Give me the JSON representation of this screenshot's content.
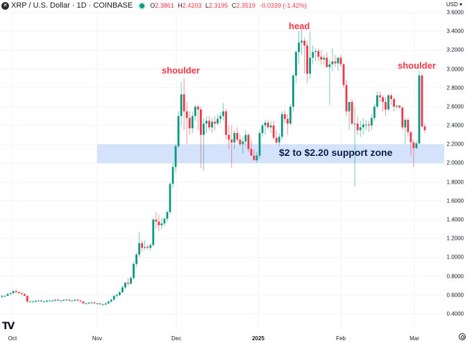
{
  "header": {
    "symbol_icon": "x-logo-icon",
    "title": "XRP / U.S. Dollar · 1D · COINBASE",
    "market_status": "open",
    "ohlc": {
      "o_label": "O",
      "o": "2.3861",
      "h_label": "H",
      "h": "2.4203",
      "l_label": "L",
      "l": "2.3195",
      "c_label": "C",
      "c": "2.3519",
      "change": "-0.0339 (-1.42%)"
    }
  },
  "axis": {
    "currency": "USD ▾",
    "y_labels": [
      "3.6000",
      "3.4000",
      "3.2000",
      "3.0000",
      "2.8000",
      "2.6000",
      "2.4000",
      "2.2000",
      "2.0000",
      "1.8000",
      "1.6000",
      "1.4000",
      "1.2000",
      "1.0000",
      "0.8000",
      "0.6000",
      "0.4000"
    ],
    "x_labels": [
      {
        "label": "Oct",
        "x": 18,
        "bold": false
      },
      {
        "label": "Nov",
        "x": 140,
        "bold": false
      },
      {
        "label": "Dec",
        "x": 254,
        "bold": false
      },
      {
        "label": "2025",
        "x": 372,
        "bold": true
      },
      {
        "label": "Feb",
        "x": 491,
        "bold": false
      },
      {
        "label": "Mar",
        "x": 597,
        "bold": false
      }
    ]
  },
  "annotations": {
    "left_shoulder": "shoulder",
    "head": "head",
    "right_shoulder": "shoulder",
    "support_zone": "$2 to $2.20 support zone"
  },
  "colors": {
    "up": "#089981",
    "down": "#f23645",
    "support_zone_fill": "#d4e2fc",
    "annotation": "#f23645",
    "zone_text": "#0c1e4a",
    "grid": "#f2f3f5"
  },
  "branding": {
    "logo": "tradingview-logo-icon"
  },
  "chart_data": {
    "type": "candlestick",
    "title": "XRP / U.S. Dollar · 1D · COINBASE",
    "xlabel": "",
    "ylabel": "USD",
    "ylim": [
      0.4,
      3.6
    ],
    "y_ticks": [
      0.4,
      0.6,
      0.8,
      1.0,
      1.2,
      1.4,
      1.6,
      1.8,
      2.0,
      2.2,
      2.4,
      2.6,
      2.8,
      3.0,
      3.2,
      3.4,
      3.6
    ],
    "x_ticks": [
      "Oct",
      "Nov",
      "Dec",
      "2025",
      "Feb",
      "Mar"
    ],
    "grid": true,
    "last": {
      "open": 2.3861,
      "high": 2.4203,
      "low": 2.3195,
      "close": 2.3519,
      "change": -0.0339,
      "change_pct": -1.42
    },
    "support_zone": {
      "low": 2.0,
      "high": 2.2,
      "label": "$2 to $2.20 support zone"
    },
    "pattern": "head and shoulders",
    "pattern_points": [
      {
        "label": "shoulder",
        "approx_date": "early Dec 2024",
        "price": 2.9
      },
      {
        "label": "head",
        "approx_date": "mid Jan 2025",
        "price": 3.4
      },
      {
        "label": "shoulder",
        "approx_date": "early Mar 2025",
        "price": 2.95
      }
    ],
    "candles": [
      [
        0.58,
        0.6,
        0.57,
        0.59
      ],
      [
        0.59,
        0.6,
        0.58,
        0.59
      ],
      [
        0.59,
        0.62,
        0.59,
        0.61
      ],
      [
        0.61,
        0.63,
        0.6,
        0.62
      ],
      [
        0.62,
        0.65,
        0.61,
        0.64
      ],
      [
        0.64,
        0.66,
        0.62,
        0.63
      ],
      [
        0.63,
        0.64,
        0.61,
        0.62
      ],
      [
        0.62,
        0.63,
        0.6,
        0.61
      ],
      [
        0.61,
        0.62,
        0.59,
        0.59
      ],
      [
        0.59,
        0.6,
        0.52,
        0.53
      ],
      [
        0.53,
        0.54,
        0.52,
        0.53
      ],
      [
        0.53,
        0.54,
        0.52,
        0.53
      ],
      [
        0.53,
        0.54,
        0.52,
        0.54
      ],
      [
        0.54,
        0.55,
        0.53,
        0.54
      ],
      [
        0.54,
        0.55,
        0.53,
        0.53
      ],
      [
        0.53,
        0.54,
        0.52,
        0.53
      ],
      [
        0.53,
        0.55,
        0.52,
        0.54
      ],
      [
        0.54,
        0.55,
        0.53,
        0.54
      ],
      [
        0.54,
        0.55,
        0.53,
        0.54
      ],
      [
        0.54,
        0.55,
        0.53,
        0.55
      ],
      [
        0.55,
        0.56,
        0.54,
        0.54
      ],
      [
        0.54,
        0.55,
        0.53,
        0.54
      ],
      [
        0.54,
        0.55,
        0.53,
        0.55
      ],
      [
        0.55,
        0.56,
        0.54,
        0.55
      ],
      [
        0.55,
        0.56,
        0.54,
        0.54
      ],
      [
        0.54,
        0.55,
        0.53,
        0.54
      ],
      [
        0.54,
        0.55,
        0.53,
        0.55
      ],
      [
        0.55,
        0.56,
        0.54,
        0.54
      ],
      [
        0.54,
        0.55,
        0.53,
        0.53
      ],
      [
        0.53,
        0.54,
        0.51,
        0.51
      ],
      [
        0.51,
        0.52,
        0.5,
        0.51
      ],
      [
        0.51,
        0.52,
        0.5,
        0.52
      ],
      [
        0.52,
        0.53,
        0.51,
        0.52
      ],
      [
        0.52,
        0.53,
        0.51,
        0.51
      ],
      [
        0.51,
        0.52,
        0.5,
        0.51
      ],
      [
        0.51,
        0.52,
        0.5,
        0.5
      ],
      [
        0.5,
        0.51,
        0.49,
        0.5
      ],
      [
        0.5,
        0.52,
        0.49,
        0.51
      ],
      [
        0.51,
        0.54,
        0.5,
        0.53
      ],
      [
        0.53,
        0.56,
        0.52,
        0.55
      ],
      [
        0.55,
        0.6,
        0.54,
        0.59
      ],
      [
        0.59,
        0.62,
        0.57,
        0.6
      ],
      [
        0.6,
        0.64,
        0.59,
        0.63
      ],
      [
        0.63,
        0.7,
        0.62,
        0.68
      ],
      [
        0.68,
        0.74,
        0.66,
        0.73
      ],
      [
        0.73,
        0.78,
        0.7,
        0.72
      ],
      [
        0.72,
        0.8,
        0.71,
        0.78
      ],
      [
        0.78,
        0.95,
        0.76,
        0.93
      ],
      [
        0.93,
        1.05,
        0.9,
        1.03
      ],
      [
        1.03,
        1.27,
        1.0,
        1.15
      ],
      [
        1.15,
        1.18,
        1.06,
        1.1
      ],
      [
        1.1,
        1.18,
        1.08,
        1.11
      ],
      [
        1.11,
        1.14,
        1.08,
        1.1
      ],
      [
        1.1,
        1.15,
        1.07,
        1.13
      ],
      [
        1.13,
        1.42,
        1.12,
        1.4
      ],
      [
        1.4,
        1.48,
        1.3,
        1.38
      ],
      [
        1.38,
        1.45,
        1.28,
        1.34
      ],
      [
        1.34,
        1.42,
        1.3,
        1.36
      ],
      [
        1.36,
        1.42,
        1.33,
        1.41
      ],
      [
        1.41,
        1.5,
        1.38,
        1.48
      ],
      [
        1.48,
        1.8,
        1.46,
        1.78
      ],
      [
        1.78,
        2.0,
        1.74,
        1.96
      ],
      [
        1.96,
        2.2,
        1.9,
        2.18
      ],
      [
        2.18,
        2.55,
        2.16,
        2.5
      ],
      [
        2.5,
        2.86,
        2.4,
        2.73
      ],
      [
        2.73,
        2.9,
        2.35,
        2.55
      ],
      [
        2.55,
        2.65,
        2.2,
        2.48
      ],
      [
        2.48,
        2.55,
        2.3,
        2.37
      ],
      [
        2.37,
        2.55,
        2.32,
        2.5
      ],
      [
        2.5,
        2.62,
        2.45,
        2.6
      ],
      [
        2.6,
        2.62,
        2.35,
        2.57
      ],
      [
        2.57,
        2.6,
        1.95,
        2.3
      ],
      [
        2.3,
        2.48,
        1.92,
        2.42
      ],
      [
        2.42,
        2.5,
        2.32,
        2.45
      ],
      [
        2.45,
        2.5,
        2.35,
        2.38
      ],
      [
        2.38,
        2.48,
        2.32,
        2.44
      ],
      [
        2.44,
        2.5,
        2.35,
        2.42
      ],
      [
        2.42,
        2.52,
        2.4,
        2.47
      ],
      [
        2.47,
        2.54,
        2.42,
        2.5
      ],
      [
        2.5,
        2.64,
        2.45,
        2.55
      ],
      [
        2.55,
        2.58,
        2.25,
        2.3
      ],
      [
        2.3,
        2.4,
        2.15,
        2.25
      ],
      [
        2.25,
        2.4,
        1.95,
        2.22
      ],
      [
        2.22,
        2.35,
        2.15,
        2.32
      ],
      [
        2.32,
        2.38,
        2.22,
        2.25
      ],
      [
        2.25,
        2.3,
        2.18,
        2.2
      ],
      [
        2.2,
        2.28,
        2.1,
        2.23
      ],
      [
        2.23,
        2.35,
        2.18,
        2.3
      ],
      [
        2.3,
        2.32,
        2.12,
        2.15
      ],
      [
        2.15,
        2.25,
        2.08,
        2.08
      ],
      [
        2.08,
        2.15,
        2.05,
        2.03
      ],
      [
        2.03,
        2.12,
        2.0,
        2.08
      ],
      [
        2.08,
        2.35,
        2.05,
        2.32
      ],
      [
        2.32,
        2.42,
        2.28,
        2.4
      ],
      [
        2.4,
        2.46,
        2.3,
        2.43
      ],
      [
        2.43,
        2.46,
        2.35,
        2.38
      ],
      [
        2.38,
        2.45,
        2.32,
        2.4
      ],
      [
        2.4,
        2.45,
        2.25,
        2.27
      ],
      [
        2.27,
        2.35,
        2.2,
        2.22
      ],
      [
        2.22,
        2.32,
        2.18,
        2.28
      ],
      [
        2.28,
        2.55,
        2.25,
        2.52
      ],
      [
        2.52,
        2.56,
        2.42,
        2.47
      ],
      [
        2.47,
        2.52,
        2.3,
        2.42
      ],
      [
        2.42,
        2.62,
        2.4,
        2.6
      ],
      [
        2.6,
        2.95,
        2.55,
        2.93
      ],
      [
        2.93,
        3.2,
        2.85,
        3.18
      ],
      [
        3.18,
        3.4,
        3.05,
        3.28
      ],
      [
        3.28,
        3.42,
        3.15,
        3.3
      ],
      [
        3.3,
        3.33,
        2.95,
        3.25
      ],
      [
        3.25,
        3.3,
        2.85,
        2.95
      ],
      [
        2.95,
        3.4,
        2.9,
        3.12
      ],
      [
        3.12,
        3.25,
        3.05,
        3.18
      ],
      [
        3.18,
        3.22,
        3.08,
        3.19
      ],
      [
        3.19,
        3.22,
        3.08,
        3.13
      ],
      [
        3.13,
        3.2,
        3.05,
        3.1
      ],
      [
        3.1,
        3.15,
        3.05,
        3.12
      ],
      [
        3.12,
        3.18,
        3.02,
        3.02
      ],
      [
        3.02,
        3.1,
        2.62,
        3.05
      ],
      [
        3.05,
        3.22,
        2.98,
        3.08
      ],
      [
        3.08,
        3.15,
        3.02,
        3.06
      ],
      [
        3.06,
        3.12,
        2.98,
        3.12
      ],
      [
        3.12,
        3.15,
        3.02,
        3.05
      ],
      [
        3.05,
        3.06,
        2.8,
        2.83
      ],
      [
        2.83,
        2.88,
        2.5,
        2.55
      ],
      [
        2.55,
        2.65,
        2.35,
        2.65
      ],
      [
        2.65,
        2.68,
        2.4,
        2.42
      ],
      [
        2.42,
        2.6,
        1.75,
        2.42
      ],
      [
        2.42,
        2.5,
        2.3,
        2.35
      ],
      [
        2.35,
        2.45,
        2.28,
        2.38
      ],
      [
        2.38,
        2.48,
        2.3,
        2.41
      ],
      [
        2.41,
        2.46,
        2.35,
        2.41
      ],
      [
        2.41,
        2.45,
        2.33,
        2.4
      ],
      [
        2.4,
        2.52,
        2.35,
        2.48
      ],
      [
        2.48,
        2.63,
        2.45,
        2.6
      ],
      [
        2.6,
        2.76,
        2.58,
        2.72
      ],
      [
        2.72,
        2.76,
        2.65,
        2.7
      ],
      [
        2.7,
        2.72,
        2.55,
        2.65
      ],
      [
        2.65,
        2.7,
        2.5,
        2.57
      ],
      [
        2.57,
        2.73,
        2.55,
        2.72
      ],
      [
        2.72,
        2.74,
        2.62,
        2.68
      ],
      [
        2.68,
        2.7,
        2.55,
        2.6
      ],
      [
        2.6,
        2.62,
        2.58,
        2.61
      ],
      [
        2.61,
        2.62,
        2.58,
        2.59
      ],
      [
        2.59,
        2.6,
        2.35,
        2.38
      ],
      [
        2.38,
        2.48,
        2.2,
        2.46
      ],
      [
        2.46,
        2.48,
        2.28,
        2.33
      ],
      [
        2.33,
        2.34,
        2.08,
        2.22
      ],
      [
        2.22,
        2.25,
        1.96,
        2.16
      ],
      [
        2.16,
        2.24,
        2.15,
        2.21
      ],
      [
        2.21,
        2.98,
        2.2,
        2.93
      ],
      [
        2.93,
        2.95,
        2.38,
        2.39
      ],
      [
        2.39,
        2.42,
        2.32,
        2.35
      ]
    ]
  }
}
